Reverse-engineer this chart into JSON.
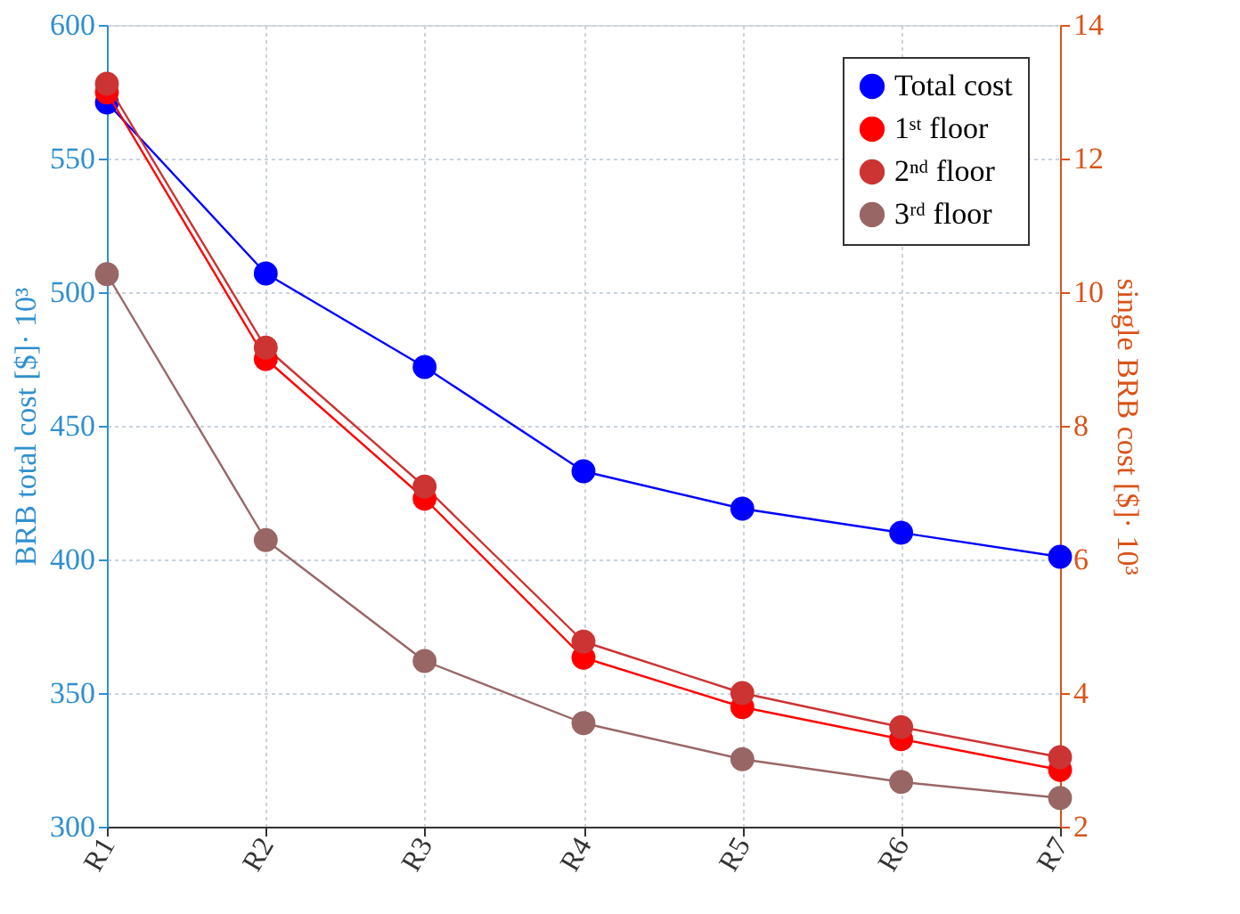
{
  "chart_data": {
    "type": "line",
    "ylabel": "BRB total cost [$]· 10³",
    "y2label": "single BRB cost [$]· 10³",
    "categories": [
      "R1",
      "R2",
      "R3",
      "R4",
      "R5",
      "R6",
      "R7"
    ],
    "series": [
      {
        "name": "Total cost",
        "color": "#0000ff",
        "values": [
          571,
          507,
          472,
          433,
          419,
          410,
          401
        ]
      },
      {
        "name": "1ˢᵗ floor",
        "color": "#ff0000",
        "axis": "y2",
        "values": [
          12.99,
          9.0,
          6.91,
          4.53,
          3.79,
          3.31,
          2.85
        ]
      },
      {
        "name": "2ⁿᵈ floor",
        "color": "#cc3333",
        "axis": "y2",
        "values": [
          13.12,
          9.17,
          7.09,
          4.77,
          4.0,
          3.49,
          3.04
        ]
      },
      {
        "name": "3ʳᵈ floor",
        "color": "#996666",
        "axis": "y2",
        "values": [
          10.27,
          6.29,
          4.48,
          3.55,
          3.01,
          2.67,
          2.43
        ]
      }
    ],
    "ylim": [
      300,
      600
    ],
    "yticks": [
      300,
      350,
      400,
      450,
      500,
      550,
      600
    ],
    "y2lim": [
      2,
      14
    ],
    "y2ticks": [
      2,
      4,
      6,
      8,
      10,
      12,
      14
    ],
    "grid": true,
    "legend": "top right",
    "marker": "circle",
    "line_style": "solid"
  }
}
